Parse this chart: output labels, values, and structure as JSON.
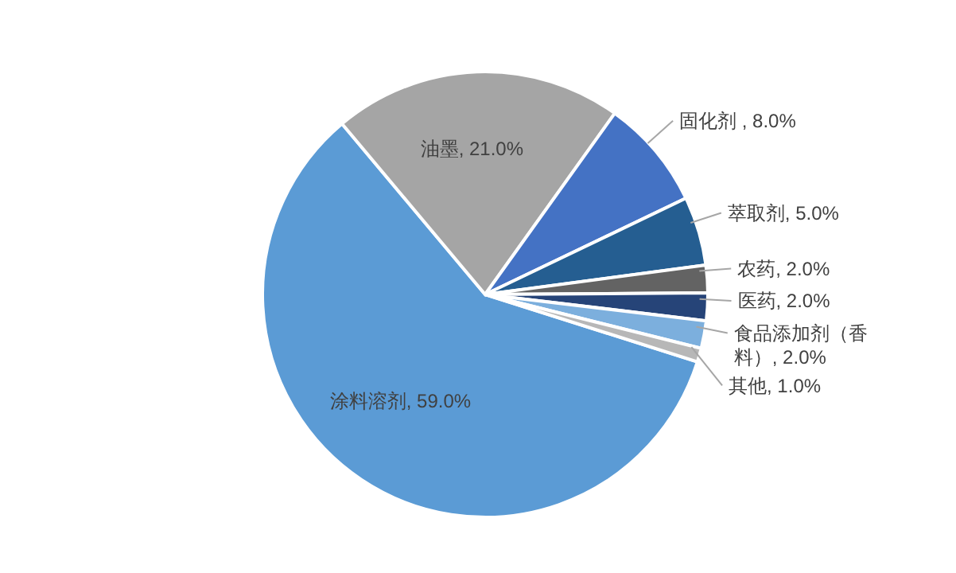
{
  "chart_data": {
    "type": "pie",
    "categories": [
      "涂料溶剂",
      "油墨",
      "固化剂 ",
      "萃取剂",
      "农药",
      "医药",
      "食品添加剂（香料）",
      "其他"
    ],
    "values": [
      59,
      21,
      8,
      5,
      2,
      2,
      2,
      1
    ],
    "value_labels": [
      "59.0%",
      "21.0%",
      "8.0%",
      "5.0%",
      "2.0%",
      "2.0%",
      "2.0%",
      "1.0%"
    ],
    "colors": [
      "#5b9bd5",
      "#a5a5a5",
      "#4472c4",
      "#255e91",
      "#636363",
      "#264478",
      "#7cafdd",
      "#b7b7b7"
    ],
    "legend": false
  }
}
